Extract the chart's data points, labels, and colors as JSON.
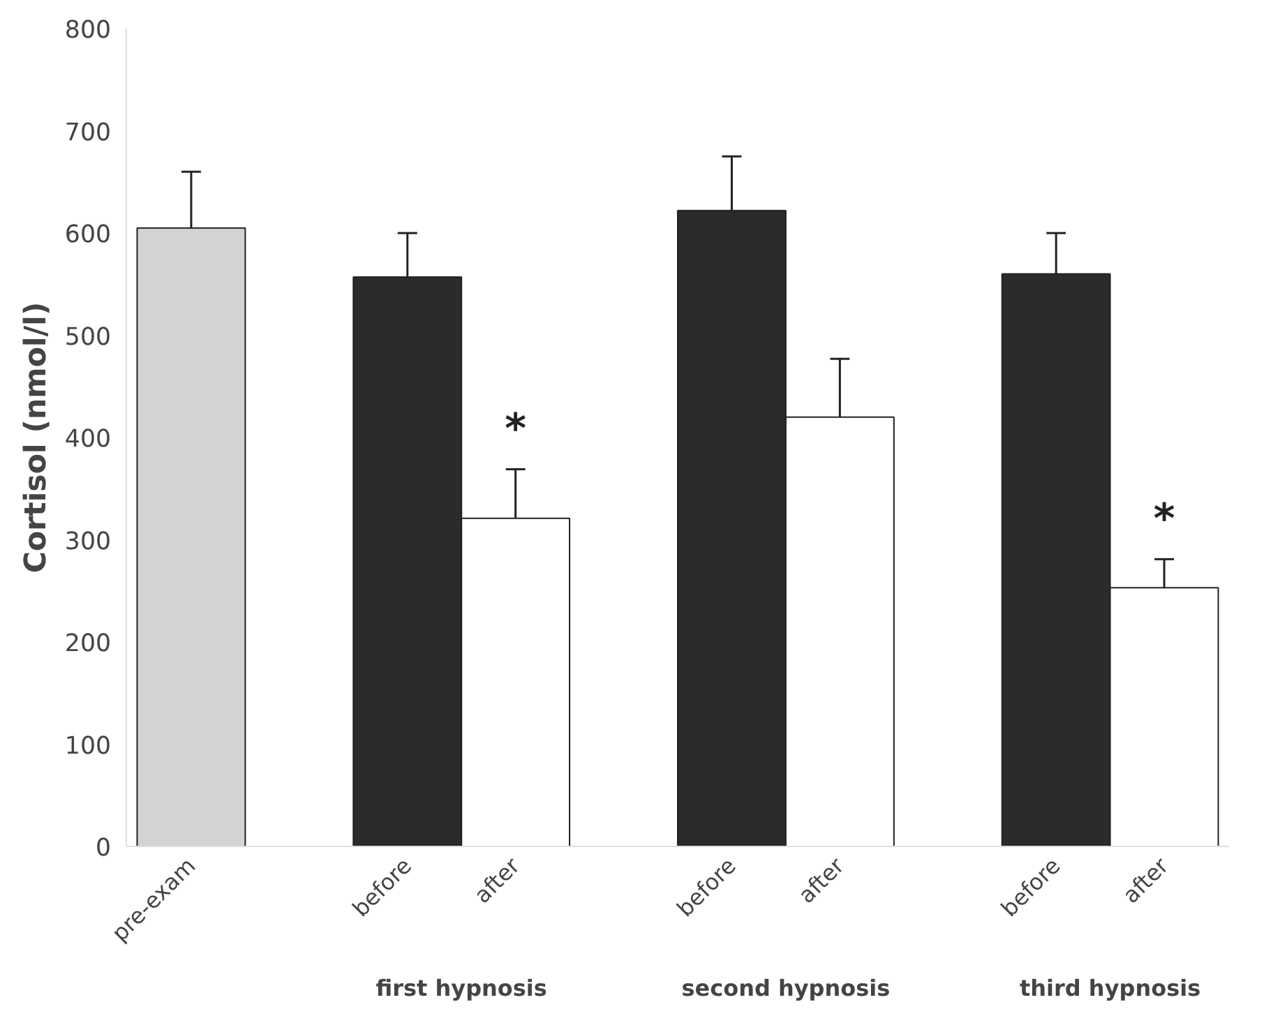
{
  "chart_data": {
    "type": "bar",
    "ylabel": "Cortisol (nmol/l)",
    "categories": [
      "pre-exam",
      null,
      "before",
      "after",
      null,
      "before",
      "after",
      null,
      "before",
      "after"
    ],
    "values": [
      605,
      null,
      557,
      321,
      null,
      622,
      420,
      null,
      560,
      253
    ],
    "colors": [
      "#d3d3d3",
      null,
      "#2b2b2b",
      "#ffffff",
      null,
      "#2b2b2b",
      "#ffffff",
      null,
      "#2b2b2b",
      "#ffffff"
    ],
    "errors": [
      [
        605,
        660
      ],
      null,
      [
        557,
        600
      ],
      [
        321,
        369
      ],
      null,
      [
        622,
        675
      ],
      [
        420,
        477
      ],
      null,
      [
        560,
        600
      ],
      [
        253,
        281
      ]
    ],
    "value_labels": [
      null,
      null,
      null,
      "*",
      null,
      null,
      null,
      null,
      null,
      "*"
    ],
    "annotations": [
      "first hypnosis",
      "second hypnosis",
      "third hypnosis"
    ],
    "ylim": [
      0,
      800
    ],
    "yticks": [
      0,
      100,
      200,
      300,
      400,
      500,
      600,
      700,
      800
    ],
    "grid": false
  }
}
